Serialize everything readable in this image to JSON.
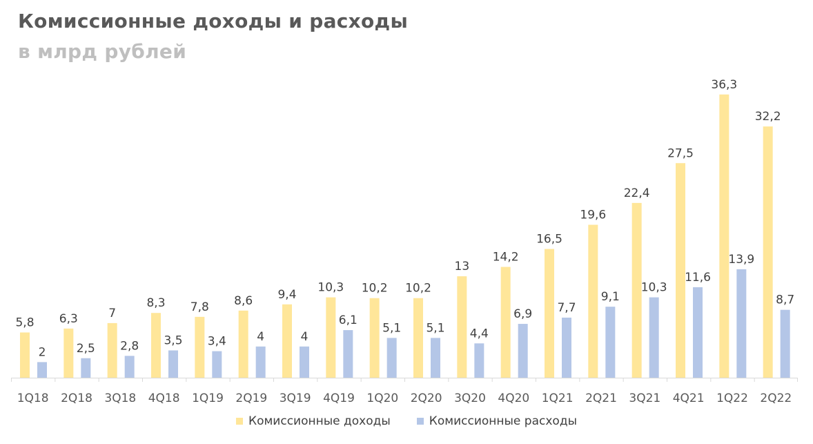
{
  "title": "Комиссионные доходы и расходы",
  "subtitle": "в млрд рублей",
  "colors": {
    "income": "#ffe699",
    "expense": "#b4c6e7",
    "axis": "#d9d9d9",
    "label": "#404040"
  },
  "chart_data": {
    "type": "bar",
    "categories": [
      "1Q18",
      "2Q18",
      "3Q18",
      "4Q18",
      "1Q19",
      "2Q19",
      "3Q19",
      "4Q19",
      "1Q20",
      "2Q20",
      "3Q20",
      "4Q20",
      "1Q21",
      "2Q21",
      "3Q21",
      "4Q21",
      "1Q22",
      "2Q22"
    ],
    "series": [
      {
        "name": "Комиссионные доходы",
        "values": [
          5.8,
          6.3,
          7,
          8.3,
          7.8,
          8.6,
          9.4,
          10.3,
          10.2,
          10.2,
          13,
          14.2,
          16.5,
          19.6,
          22.4,
          27.5,
          36.3,
          32.2
        ],
        "labels": [
          "5,8",
          "6,3",
          "7",
          "8,3",
          "7,8",
          "8,6",
          "9,4",
          "10,3",
          "10,2",
          "10,2",
          "13",
          "14,2",
          "16,5",
          "19,6",
          "22,4",
          "27,5",
          "36,3",
          "32,2"
        ]
      },
      {
        "name": "Комиссионные расходы",
        "values": [
          2,
          2.5,
          2.8,
          3.5,
          3.4,
          4,
          4,
          6.1,
          5.1,
          5.1,
          4.4,
          6.9,
          7.7,
          9.1,
          10.3,
          11.6,
          13.9,
          8.7
        ],
        "labels": [
          "2",
          "2,5",
          "2,8",
          "3,5",
          "3,4",
          "4",
          "4",
          "6,1",
          "5,1",
          "5,1",
          "4,4",
          "6,9",
          "7,7",
          "9,1",
          "10,3",
          "11,6",
          "13,9",
          "8,7"
        ]
      }
    ],
    "ylim": [
      0,
      40
    ],
    "grid": false,
    "legend_position": "bottom"
  }
}
